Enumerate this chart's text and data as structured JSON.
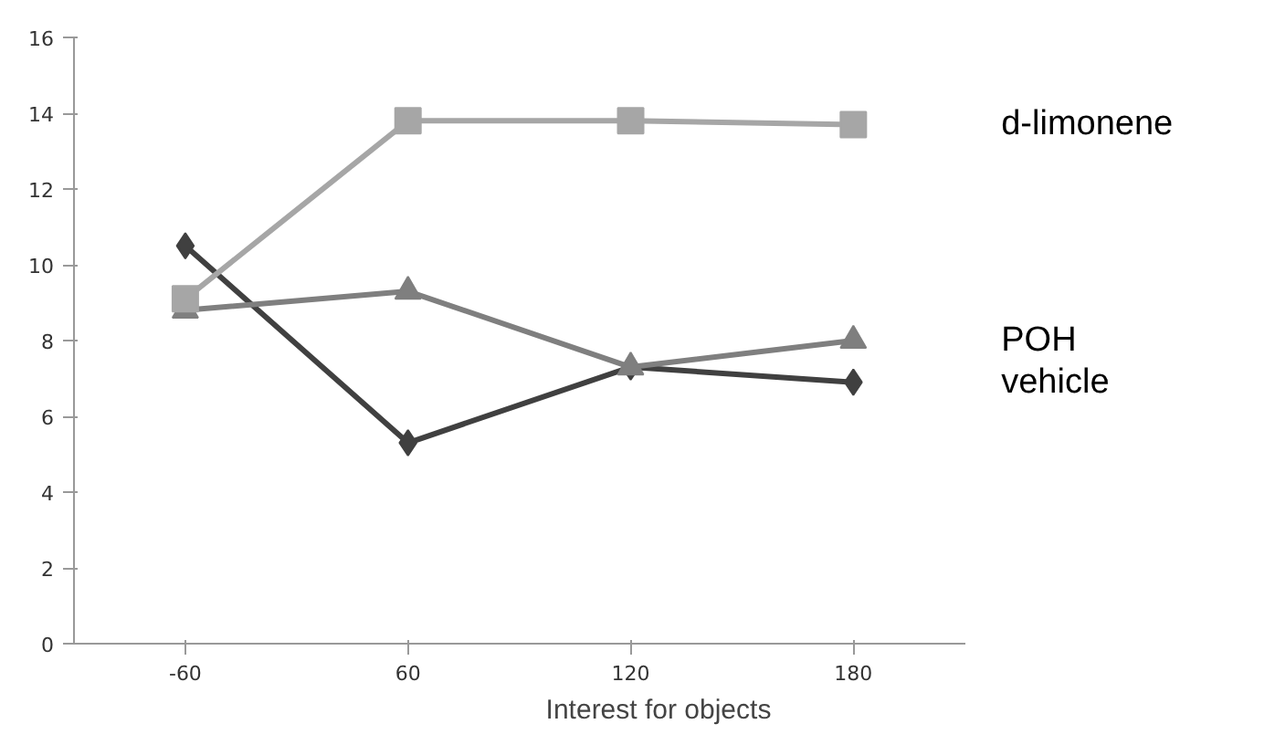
{
  "chart_data": {
    "type": "line",
    "xlabel": "Interest for objects",
    "categories": [
      "-60",
      "60",
      "120",
      "180"
    ],
    "ylim": [
      0,
      16
    ],
    "yticks": [
      0,
      2,
      4,
      6,
      8,
      10,
      12,
      14,
      16
    ],
    "grid": false,
    "series": [
      {
        "name": "d-limonene",
        "color": "#a6a6a6",
        "marker": "square",
        "values": [
          9.1,
          13.8,
          13.8,
          13.7
        ]
      },
      {
        "name": "POH",
        "color": "#7f7f7f",
        "marker": "triangle",
        "values": [
          8.8,
          9.3,
          7.3,
          8.0
        ]
      },
      {
        "name": "vehicle",
        "color": "#404040",
        "marker": "diamond",
        "values": [
          10.5,
          5.3,
          7.3,
          6.9
        ]
      }
    ]
  }
}
